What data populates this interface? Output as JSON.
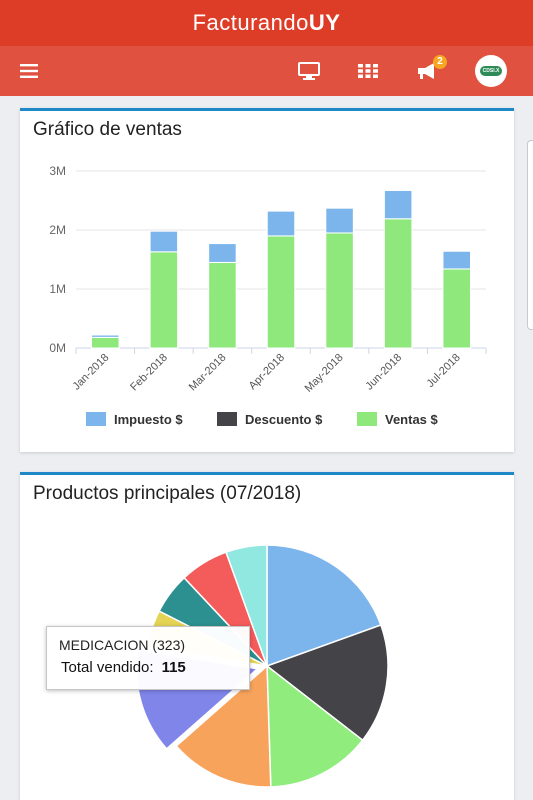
{
  "app": {
    "title_light": "Facturando",
    "title_bold": "UY"
  },
  "toolbar": {
    "notification_count": "2",
    "avatar_text": "CDSI.X"
  },
  "sales_card": {
    "title": "Gráfico de ventas"
  },
  "products_card": {
    "title": "Productos principales (07/2018)"
  },
  "colors": {
    "header": "#dd3c27",
    "toolbar": "#e0513f",
    "card_accent": "#1e88c8"
  },
  "chart_data": [
    {
      "type": "bar",
      "stacked": true,
      "title": "Gráfico de ventas",
      "categories": [
        "Jan-2018",
        "Feb-2018",
        "Mar-2018",
        "Apr-2018",
        "May-2018",
        "Jun-2018",
        "Jul-2018"
      ],
      "series": [
        {
          "name": "Ventas $",
          "color": "#8ee87c",
          "values": [
            0.18,
            1.63,
            1.45,
            1.9,
            1.95,
            2.19,
            1.34
          ]
        },
        {
          "name": "Descuento $",
          "color": "#434348",
          "values": [
            0,
            0,
            0,
            0,
            0,
            0,
            0
          ]
        },
        {
          "name": "Impuesto $",
          "color": "#7cb5ec",
          "values": [
            0.04,
            0.35,
            0.32,
            0.42,
            0.42,
            0.48,
            0.3
          ]
        }
      ],
      "yticks": [
        "0M",
        "1M",
        "2M",
        "3M"
      ],
      "ylim": [
        0,
        3
      ],
      "legend": [
        "Impuesto $",
        "Descuento $",
        "Ventas $"
      ],
      "legend_position": "bottom",
      "grid": true
    },
    {
      "type": "pie",
      "title": "Productos principales (07/2018)",
      "slices": [
        {
          "color": "#7cb5ec",
          "value": 19.5
        },
        {
          "color": "#434348",
          "value": 16
        },
        {
          "color": "#90ed7d",
          "value": 14
        },
        {
          "color": "#f7a35c",
          "value": 14
        },
        {
          "color": "#8085e9",
          "value": 14,
          "name": "MEDICACION (323)",
          "total": 115,
          "sliced": true
        },
        {
          "color": "#e4d354",
          "value": 5
        },
        {
          "color": "#2b908f",
          "value": 5.5
        },
        {
          "color": "#f45b5b",
          "value": 6.5
        },
        {
          "color": "#91e8e1",
          "value": 5.5
        }
      ],
      "tooltip": {
        "title": "MEDICACION (323)",
        "label": "Total vendido:",
        "value": "115"
      }
    }
  ]
}
